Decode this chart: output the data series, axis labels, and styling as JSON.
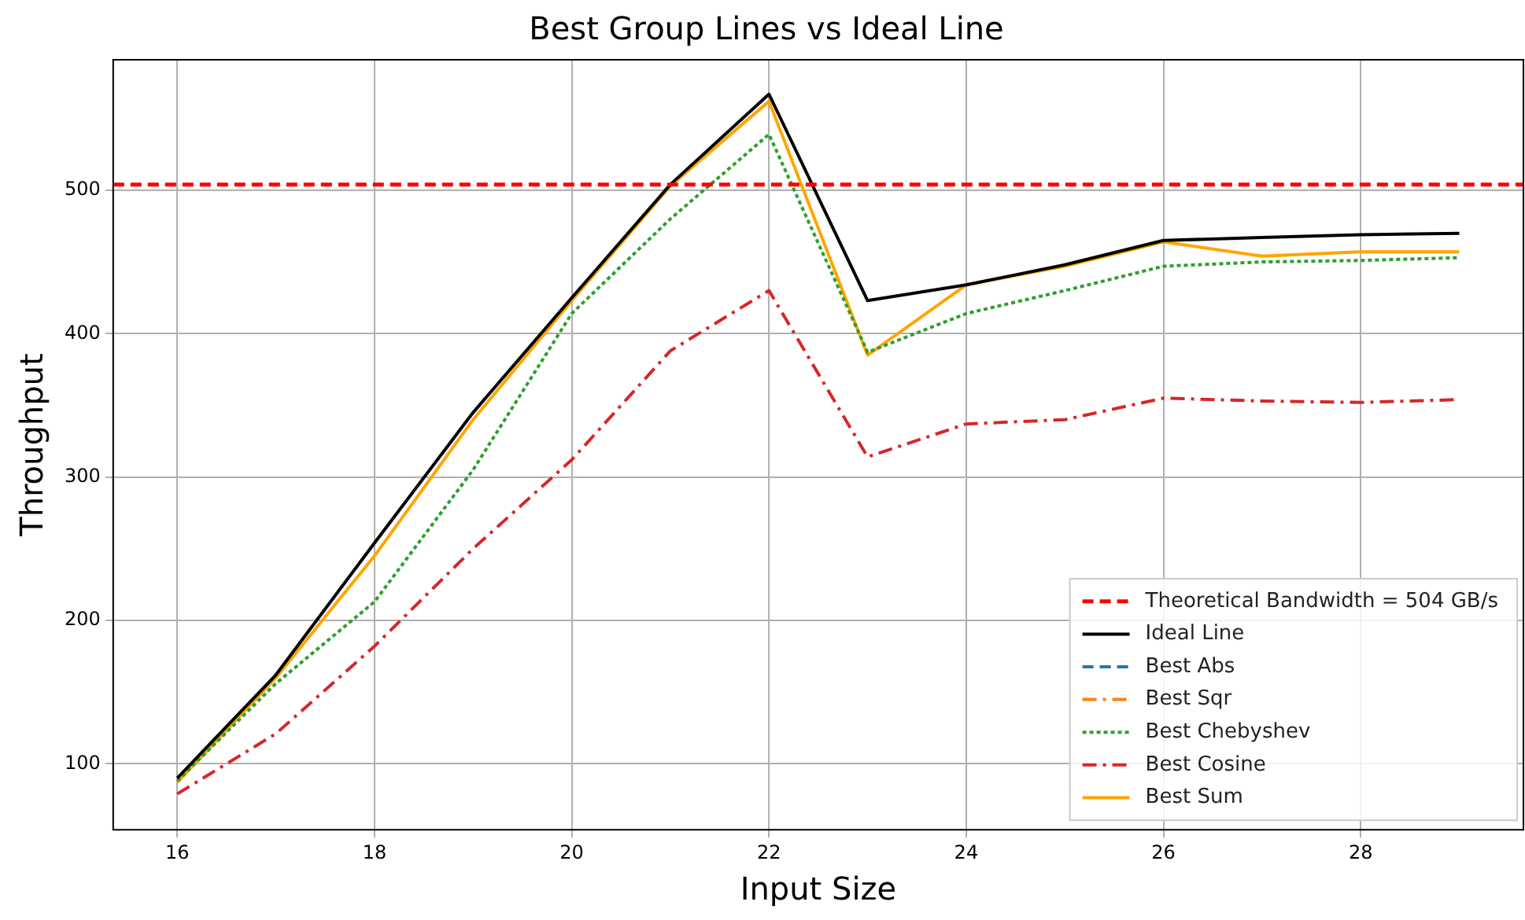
{
  "chart_data": {
    "type": "line",
    "title": "Best Group Lines vs Ideal Line",
    "xlabel": "Input Size",
    "ylabel": "Throughput",
    "x": [
      16,
      17,
      18,
      19,
      20,
      21,
      22,
      23,
      24,
      25,
      26,
      27,
      28,
      29
    ],
    "xlim": [
      15.35,
      29.65
    ],
    "xticks": [
      16,
      18,
      20,
      22,
      24,
      26,
      28
    ],
    "ylim": [
      54,
      591
    ],
    "yticks": [
      100,
      200,
      300,
      400,
      500
    ],
    "grid": true,
    "legend": "bottom right",
    "marker": "none",
    "ref_lines": [
      {
        "axis": "y",
        "value": 504,
        "label": "Theoretical Bandwidth = 504 GB/s",
        "color": "#ff0000",
        "line_style": "dashed"
      }
    ],
    "series": [
      {
        "name": "Ideal Line",
        "color": "#000000",
        "line_style": "solid",
        "values": [
          90,
          162,
          254,
          345,
          425,
          504,
          567,
          423,
          434,
          448,
          465,
          467,
          469,
          470
        ]
      },
      {
        "name": "Best Abs",
        "color": "#1f77b4",
        "line_style": "dashed",
        "values": [
          null,
          null,
          null,
          null,
          null,
          null,
          null,
          null,
          null,
          null,
          null,
          null,
          null,
          null
        ]
      },
      {
        "name": "Best Sqr",
        "color": "#ff7f0e",
        "line_style": "dashdot",
        "values": [
          null,
          null,
          null,
          null,
          null,
          null,
          null,
          null,
          null,
          null,
          null,
          null,
          null,
          null
        ]
      },
      {
        "name": "Best Chebyshev",
        "color": "#2ca02c",
        "line_style": "dotted",
        "values": [
          88,
          156,
          213,
          305,
          414,
          480,
          539,
          387,
          414,
          430,
          447,
          450,
          451,
          453
        ]
      },
      {
        "name": "Best Cosine",
        "color": "#d62728",
        "line_style": "dashdot",
        "values": [
          79,
          121,
          182,
          250,
          312,
          388,
          430,
          314,
          337,
          340,
          355,
          353,
          352,
          354
        ]
      },
      {
        "name": "Best Sum",
        "color": "#ffa500",
        "line_style": "solid",
        "values": [
          87,
          160,
          245,
          340,
          423,
          503,
          562,
          385,
          434,
          447,
          464,
          454,
          457,
          457
        ]
      }
    ]
  }
}
